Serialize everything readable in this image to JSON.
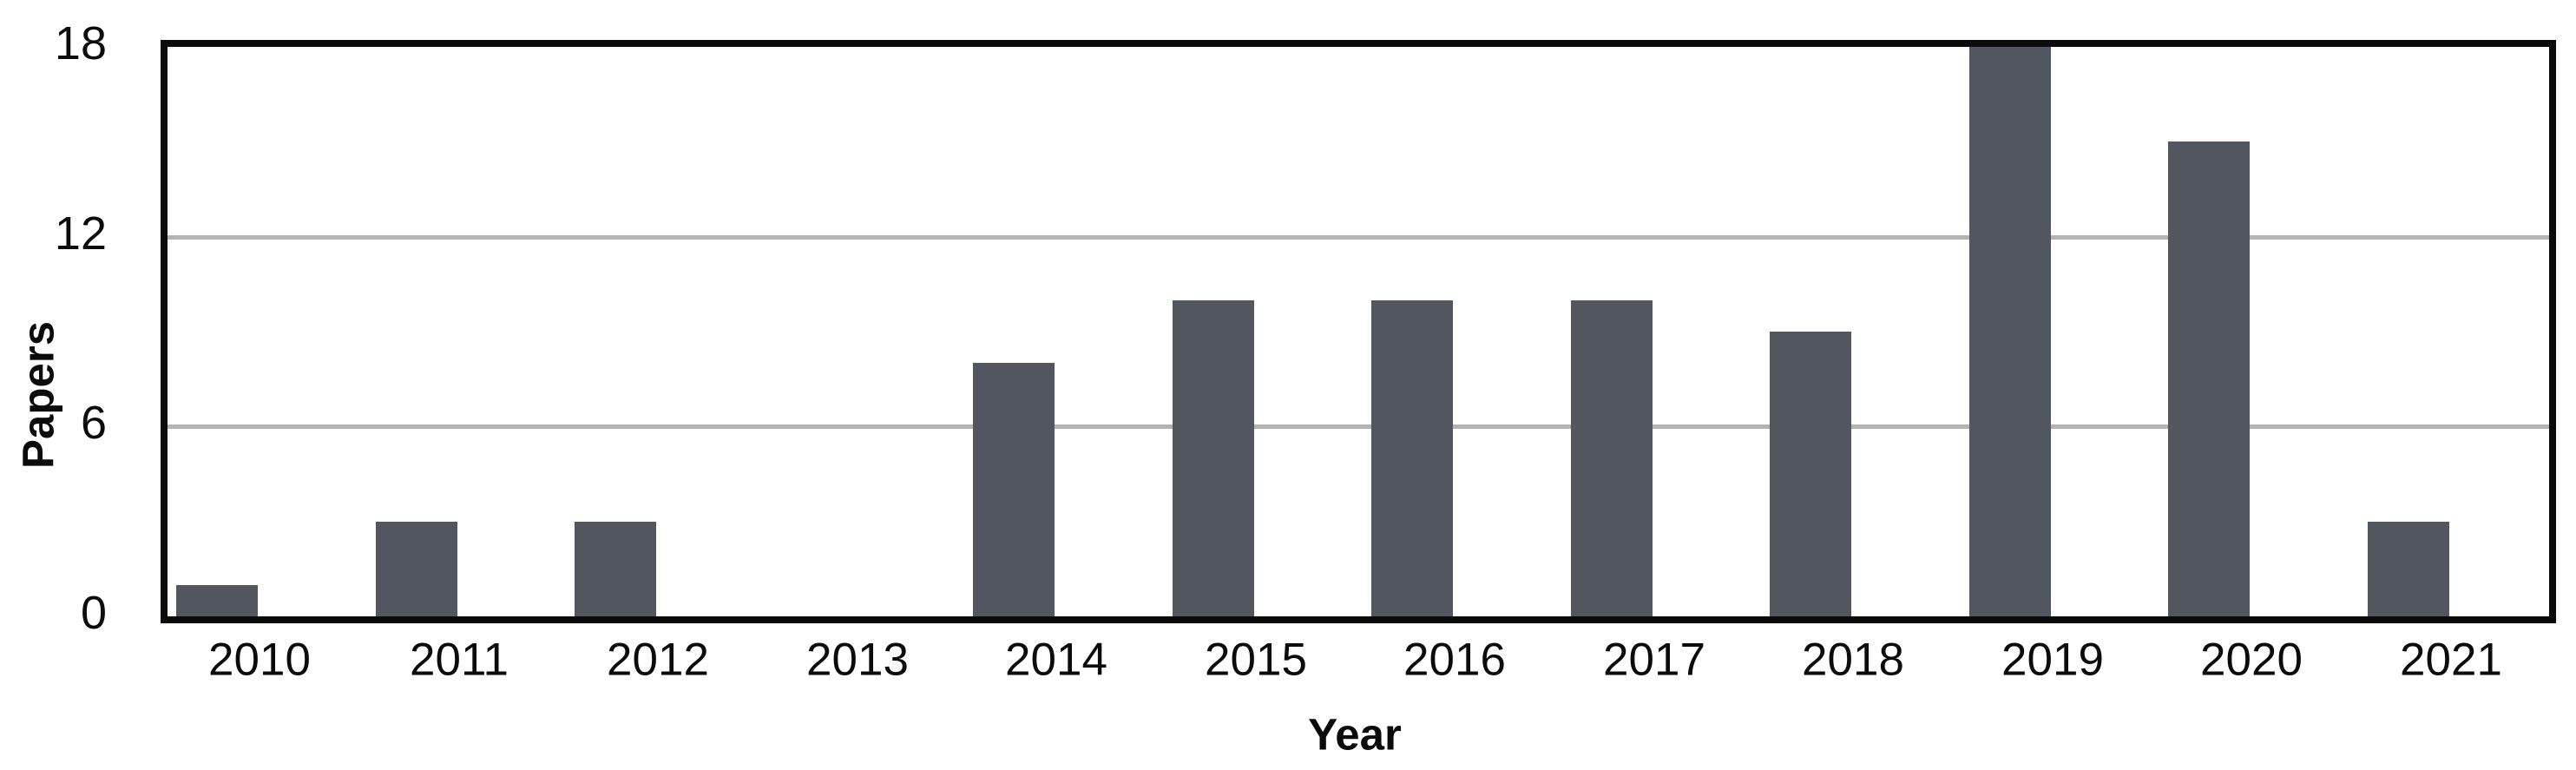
{
  "page": {
    "background_color": "#ffffff"
  },
  "chart_data": {
    "type": "bar",
    "title": "",
    "xlabel": "Year",
    "ylabel": "Papers",
    "categories": [
      "2010",
      "2011",
      "2012",
      "2013",
      "2014",
      "2015",
      "2016",
      "2017",
      "2018",
      "2019",
      "2020",
      "2021"
    ],
    "values": [
      1,
      3,
      3,
      0,
      8,
      10,
      10,
      10,
      9,
      18,
      15,
      3
    ],
    "ylim": [
      0,
      18
    ],
    "yticks": [
      0,
      6,
      12,
      18
    ],
    "gridline_values": [
      6,
      12
    ],
    "grid": "horizontal-only",
    "legend_position": "none",
    "bar_color": "#52565e",
    "gridline_color": "#b3b3b3",
    "axis_border_color": "#0b0b0b",
    "text_color": "#0b0b0b"
  }
}
